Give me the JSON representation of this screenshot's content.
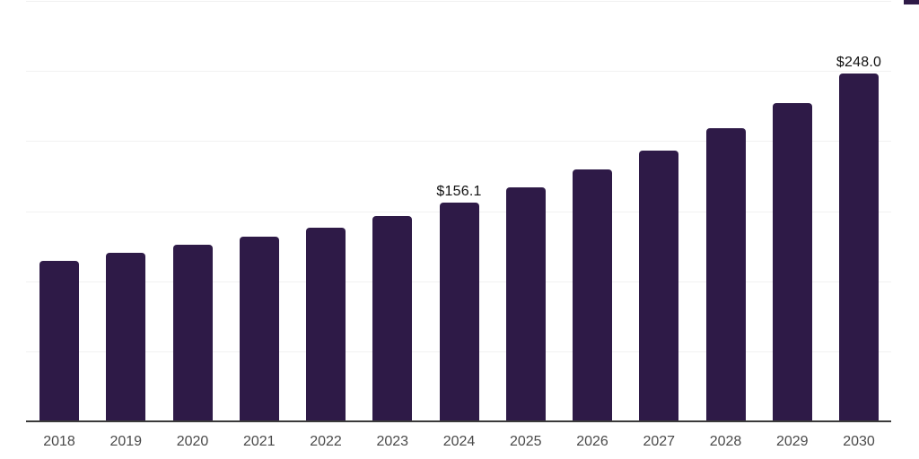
{
  "chart_data": {
    "type": "bar",
    "title": "",
    "xlabel": "",
    "ylabel": "",
    "categories": [
      "2018",
      "2019",
      "2020",
      "2021",
      "2022",
      "2023",
      "2024",
      "2025",
      "2026",
      "2027",
      "2028",
      "2029",
      "2030"
    ],
    "values": [
      114.6,
      120.3,
      126.0,
      131.6,
      138.0,
      146.6,
      156.1,
      166.8,
      179.6,
      193.5,
      209.1,
      227.2,
      248.0
    ],
    "data_labels": [
      "",
      "",
      "",
      "",
      "",
      "",
      "$156.1",
      "",
      "",
      "",
      "",
      "",
      "$248.0"
    ],
    "ylim": [
      0,
      300
    ],
    "grid": true,
    "grid_step": 50,
    "legend": "none",
    "bar_color": "#2E1A47",
    "axis_color": "#3A3A3A",
    "gridline_color": "#F1F1F1",
    "tick_label_color": "#4A4A4A",
    "value_label_color": "#111111",
    "background_color": "#FFFFFF"
  },
  "artifacts": {
    "corner_fragment_color": "#2E1A47"
  }
}
